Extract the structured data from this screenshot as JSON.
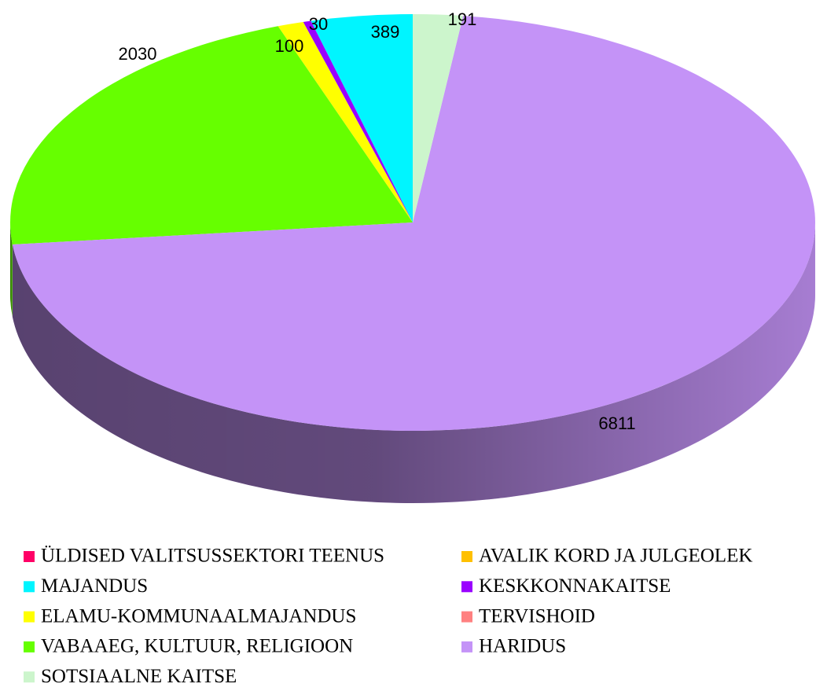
{
  "chart_data": {
    "type": "pie3d",
    "categories": [
      "ÜLDISED VALITSUSSEKTORI TEENUS",
      "AVALIK KORD JA JULGEOLEK",
      "MAJANDUS",
      "KESKKONNAKAITSE",
      "ELAMU-KOMMUNAALMAJANDUS",
      "TERVISHOID",
      "VABAAEG, KULTUUR, RELIGIOON",
      "HARIDUS",
      "SOTSIAALNE KAITSE"
    ],
    "values": [
      0,
      0,
      389,
      30,
      100,
      0,
      2030,
      6811,
      191
    ],
    "colors": [
      "#ff0066",
      "#ffc000",
      "#00f5ff",
      "#9900ff",
      "#ffff00",
      "#ff8080",
      "#66ff00",
      "#c493f7",
      "#ccf5cc"
    ],
    "legend": "bottom"
  }
}
